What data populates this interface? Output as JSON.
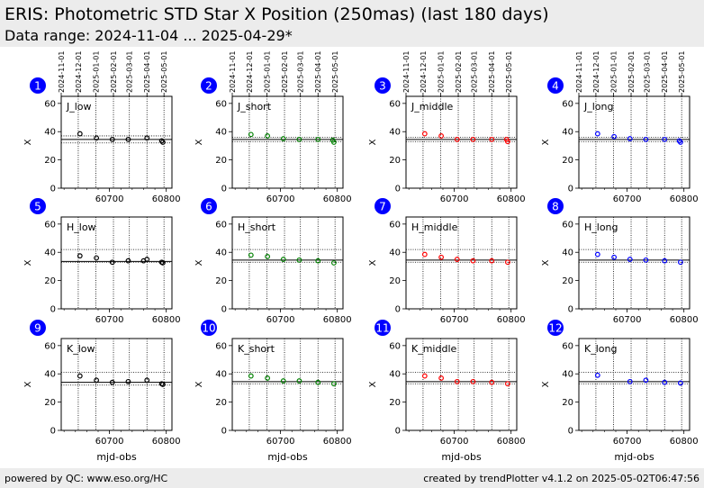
{
  "header": {
    "title": "ERIS: Photometric STD Star X Position (250mas) (last 180 days)",
    "subtitle": "Data range: 2024-11-04 ... 2025-04-29*"
  },
  "footer": {
    "left": "powered by QC: www.eso.org/HC",
    "right": "created by trendPlotter v4.1.2 on 2025-05-02T06:47:56"
  },
  "colors": {
    "low": "#000000",
    "short": "#008000",
    "middle": "#ff0000",
    "long": "#0000ff",
    "badge": "#0000ff"
  },
  "chart_data": {
    "type": "scatter",
    "xlabel": "mjd-obs",
    "ylabel": "X",
    "xlim": [
      60615,
      60810
    ],
    "ylim": [
      0,
      65
    ],
    "xticks": [
      60700,
      60800
    ],
    "yticks": [
      0,
      20,
      40,
      60
    ],
    "date_ticks": [
      {
        "label": "2024-11-01",
        "mjd": 60615
      },
      {
        "label": "2024-12-01",
        "mjd": 60645
      },
      {
        "label": "2025-01-01",
        "mjd": 60676
      },
      {
        "label": "2025-02-01",
        "mjd": 60707
      },
      {
        "label": "2025-03-01",
        "mjd": 60735
      },
      {
        "label": "2025-04-01",
        "mjd": 60766
      },
      {
        "label": "2025-05-01",
        "mjd": 60796
      }
    ],
    "panels": [
      {
        "num": "1",
        "label": "J_low",
        "color": "low",
        "ref": 34.5,
        "band": [
          32,
          37
        ],
        "points": [
          [
            60648,
            38.5
          ],
          [
            60677,
            35.5
          ],
          [
            60705,
            34.5
          ],
          [
            60733,
            34.5
          ],
          [
            60766,
            35.5
          ],
          [
            60792,
            33.5
          ],
          [
            60794,
            32.5
          ]
        ]
      },
      {
        "num": "2",
        "label": "J_short",
        "color": "short",
        "ref": 34.5,
        "band": [
          33,
          36
        ],
        "points": [
          [
            60648,
            38
          ],
          [
            60677,
            37
          ],
          [
            60705,
            35
          ],
          [
            60733,
            34.5
          ],
          [
            60766,
            34.5
          ],
          [
            60792,
            34
          ],
          [
            60794,
            32.5
          ]
        ]
      },
      {
        "num": "3",
        "label": "J_middle",
        "color": "middle",
        "ref": 34.5,
        "band": [
          33,
          36
        ],
        "points": [
          [
            60648,
            38.5
          ],
          [
            60677,
            37
          ],
          [
            60705,
            34.5
          ],
          [
            60733,
            34.5
          ],
          [
            60766,
            34.5
          ],
          [
            60792,
            34.5
          ],
          [
            60794,
            33
          ]
        ]
      },
      {
        "num": "4",
        "label": "J_long",
        "color": "long",
        "ref": 34.5,
        "band": [
          33,
          36
        ],
        "points": [
          [
            60648,
            38.5
          ],
          [
            60677,
            36.5
          ],
          [
            60705,
            35
          ],
          [
            60733,
            34.5
          ],
          [
            60766,
            34.5
          ],
          [
            60792,
            33.5
          ],
          [
            60794,
            32.5
          ]
        ]
      },
      {
        "num": "5",
        "label": "H_low",
        "color": "low",
        "ref": 33.5,
        "band": [
          33,
          42
        ],
        "points": [
          [
            60648,
            37.5
          ],
          [
            60677,
            36
          ],
          [
            60705,
            33
          ],
          [
            60733,
            34
          ],
          [
            60760,
            34
          ],
          [
            60766,
            35
          ],
          [
            60792,
            33
          ],
          [
            60794,
            32.5
          ]
        ]
      },
      {
        "num": "6",
        "label": "H_short",
        "color": "short",
        "ref": 34.5,
        "band": [
          33,
          42
        ],
        "points": [
          [
            60648,
            38
          ],
          [
            60677,
            37
          ],
          [
            60705,
            35
          ],
          [
            60733,
            34.5
          ],
          [
            60766,
            34
          ],
          [
            60794,
            32.5
          ]
        ]
      },
      {
        "num": "7",
        "label": "H_middle",
        "color": "middle",
        "ref": 34.5,
        "band": [
          33,
          42
        ],
        "points": [
          [
            60648,
            38.5
          ],
          [
            60677,
            36.5
          ],
          [
            60705,
            35
          ],
          [
            60733,
            34
          ],
          [
            60766,
            34
          ],
          [
            60794,
            33
          ]
        ]
      },
      {
        "num": "8",
        "label": "H_long",
        "color": "long",
        "ref": 34.5,
        "band": [
          33,
          42
        ],
        "points": [
          [
            60648,
            38.5
          ],
          [
            60677,
            36.5
          ],
          [
            60705,
            35
          ],
          [
            60733,
            34.5
          ],
          [
            60766,
            34
          ],
          [
            60794,
            33
          ]
        ]
      },
      {
        "num": "9",
        "label": "K_low",
        "color": "low",
        "ref": 34,
        "band": [
          32,
          41
        ],
        "points": [
          [
            60648,
            38.5
          ],
          [
            60677,
            35.5
          ],
          [
            60705,
            34
          ],
          [
            60733,
            34.5
          ],
          [
            60766,
            35.5
          ],
          [
            60792,
            33
          ],
          [
            60794,
            32.5
          ]
        ]
      },
      {
        "num": "10",
        "label": "K_short",
        "color": "short",
        "ref": 34.5,
        "band": [
          33,
          41
        ],
        "points": [
          [
            60648,
            38.5
          ],
          [
            60677,
            37
          ],
          [
            60705,
            35
          ],
          [
            60733,
            35
          ],
          [
            60766,
            34
          ],
          [
            60794,
            33
          ]
        ]
      },
      {
        "num": "11",
        "label": "K_middle",
        "color": "middle",
        "ref": 34.5,
        "band": [
          33,
          41
        ],
        "points": [
          [
            60648,
            38.5
          ],
          [
            60677,
            37
          ],
          [
            60705,
            34.5
          ],
          [
            60733,
            34.5
          ],
          [
            60766,
            34
          ],
          [
            60794,
            33
          ]
        ]
      },
      {
        "num": "12",
        "label": "K_long",
        "color": "long",
        "ref": 34.5,
        "band": [
          33,
          41
        ],
        "points": [
          [
            60648,
            39
          ],
          [
            60705,
            34.5
          ],
          [
            60733,
            35.5
          ],
          [
            60766,
            34
          ],
          [
            60794,
            33.5
          ]
        ]
      }
    ]
  }
}
